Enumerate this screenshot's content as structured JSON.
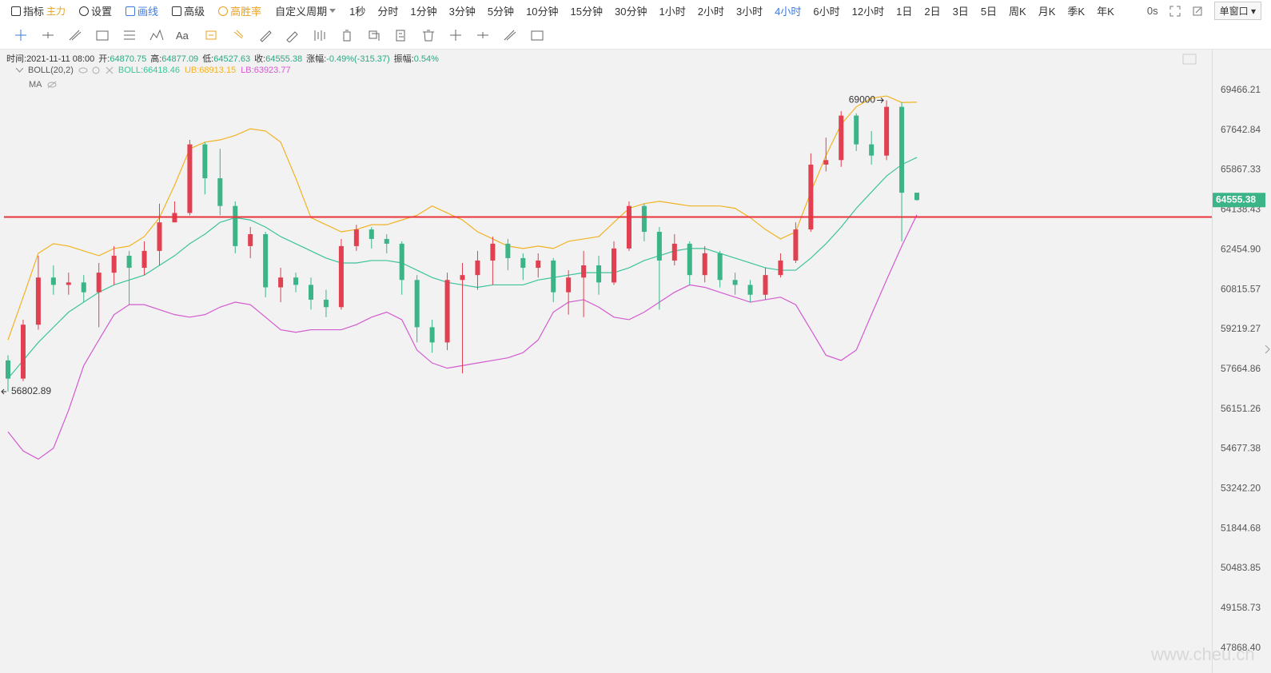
{
  "toolbar": {
    "left": [
      {
        "text": "指标",
        "tag": "主力"
      },
      {
        "text": "设置"
      },
      {
        "text": "画线"
      },
      {
        "text": "高级"
      },
      {
        "text": "高胜率"
      }
    ],
    "custom": "自定义周期",
    "periods": [
      "1秒",
      "分时",
      "1分钟",
      "3分钟",
      "5分钟",
      "10分钟",
      "15分钟",
      "30分钟",
      "1小时",
      "2小时",
      "3小时",
      "4小时",
      "6小时",
      "12小时",
      "1日",
      "2日",
      "3日",
      "5日",
      "周K",
      "月K",
      "季K",
      "年K"
    ],
    "active_period": 11,
    "timer": "0s",
    "window": "单窗口",
    "font_tool": "Aa"
  },
  "info": {
    "time_label": "时间:",
    "time": "2021-11-11 08:00",
    "open_label": "开:",
    "high_label": "高:",
    "low_label": "低:",
    "close_label": "收:",
    "change_label": "涨幅:",
    "change": "-0.49%(-315.37)",
    "amplitude_label": "振幅:",
    "amplitude": "0.54%",
    "indicator": "BOLL(20,2)",
    "ma": "MA"
  },
  "watermark": "www.cheu.cn",
  "chart_data": {
    "type": "candlestick",
    "log_scale": true,
    "grid": false,
    "up_color": "#e0404f",
    "down_color": "#3bb487",
    "ylim": [
      47100,
      71340
    ],
    "yticks": [
      69466.21,
      67642.84,
      65867.33,
      64138.43,
      {
        "value": 62454.9,
        "label": "62454.90"
      },
      60815.57,
      59219.27,
      57664.86,
      56151.26,
      54677.38,
      {
        "value": 53242.2,
        "label": "53242.20"
      },
      51844.68,
      50483.85,
      49158.73,
      {
        "value": 47868.4,
        "label": "47868.40"
      }
    ],
    "open": [
      58000,
      57300,
      59400,
      61300,
      61000,
      61100,
      60700,
      61500,
      62200,
      61700,
      62400,
      63600,
      64000,
      67000,
      65500,
      64300,
      62600,
      63100,
      60900,
      61300,
      61000,
      60400,
      60100,
      62600,
      63300,
      62900,
      62700,
      61200,
      59300,
      58700,
      61200,
      61400,
      62000,
      62700,
      62100,
      61700,
      62000,
      60700,
      61300,
      61800,
      61100,
      62500,
      64300,
      63200,
      62000,
      62700,
      61400,
      62300,
      61200,
      61000,
      60600,
      61400,
      62000,
      63300,
      66100,
      66300,
      68300,
      67000,
      66500,
      68700,
      64870.75
    ],
    "high": [
      58200,
      59600,
      62200,
      61800,
      61500,
      61400,
      61900,
      62600,
      62400,
      62800,
      64400,
      64500,
      67200,
      67100,
      66800,
      64500,
      63400,
      63200,
      61700,
      61500,
      61300,
      60800,
      62900,
      63500,
      63400,
      63100,
      62800,
      61400,
      59600,
      61500,
      61900,
      62400,
      63000,
      62900,
      62300,
      62300,
      62100,
      61600,
      62400,
      62200,
      62800,
      64500,
      64400,
      63400,
      63100,
      62800,
      62600,
      62400,
      61500,
      61200,
      61700,
      62300,
      63600,
      66600,
      67300,
      68500,
      68400,
      67600,
      69000,
      68900,
      64877.09
    ],
    "low": [
      56802.89,
      57200,
      59200,
      60600,
      60600,
      60300,
      59300,
      61000,
      60200,
      61400,
      61800,
      63600,
      63900,
      64800,
      63900,
      62300,
      62100,
      60500,
      60300,
      60700,
      60000,
      59700,
      60000,
      62400,
      62500,
      62300,
      60600,
      58700,
      58300,
      58400,
      57500,
      60800,
      61000,
      61600,
      61200,
      61300,
      60300,
      59800,
      59700,
      60600,
      61000,
      62400,
      62800,
      60000,
      61800,
      61000,
      61100,
      60900,
      60600,
      60300,
      60400,
      61300,
      61900,
      63200,
      65800,
      66000,
      66700,
      66100,
      66300,
      62800,
      64527.63
    ],
    "close": [
      57300,
      59400,
      61300,
      61000,
      61100,
      60700,
      61500,
      62200,
      61700,
      62400,
      63600,
      64000,
      67000,
      65500,
      64300,
      62600,
      63100,
      60900,
      61300,
      61000,
      60400,
      60100,
      62600,
      63300,
      62900,
      62700,
      61200,
      59300,
      58700,
      61200,
      61400,
      62000,
      62700,
      62100,
      61700,
      62000,
      60700,
      61300,
      61800,
      61100,
      62500,
      64300,
      63200,
      62000,
      62700,
      61400,
      62300,
      61200,
      61000,
      60600,
      61400,
      62000,
      63300,
      66100,
      66300,
      68300,
      67000,
      66500,
      68700,
      64870.75,
      64555.38
    ],
    "overlays": [
      {
        "name": "BOLL:",
        "color": "#3cc39b",
        "values": [
          57300,
          58000,
          58700,
          59300,
          59900,
          60300,
          60700,
          61000,
          61200,
          61400,
          61800,
          62200,
          62700,
          63100,
          63600,
          63800,
          63700,
          63400,
          63000,
          62700,
          62400,
          62100,
          61900,
          61900,
          62000,
          62000,
          61900,
          61600,
          61300,
          61100,
          61000,
          60900,
          61000,
          61000,
          61000,
          61200,
          61300,
          61400,
          61500,
          61500,
          61500,
          61700,
          62000,
          62200,
          62400,
          62500,
          62500,
          62300,
          62100,
          61900,
          61700,
          61600,
          61600,
          62100,
          62700,
          63400,
          64200,
          64900,
          65600,
          66100,
          66418.46
        ]
      },
      {
        "name": "UB:",
        "color": "#f2b322",
        "values": [
          58800,
          60500,
          62300,
          62700,
          62600,
          62400,
          62200,
          62500,
          62600,
          63000,
          63800,
          65200,
          66800,
          67100,
          67200,
          67400,
          67700,
          67600,
          67100,
          65500,
          63800,
          63500,
          63200,
          63300,
          63500,
          63500,
          63700,
          63900,
          64300,
          64000,
          63700,
          63200,
          62900,
          62600,
          62500,
          62600,
          62500,
          62800,
          62900,
          63000,
          63600,
          64200,
          64400,
          64500,
          64400,
          64300,
          64300,
          64300,
          64200,
          63800,
          63300,
          62900,
          63200,
          64900,
          66500,
          67900,
          68700,
          69100,
          69200,
          68900,
          68913.15
        ]
      },
      {
        "name": "LB:",
        "color": "#d35ad0",
        "values": [
          55300,
          54600,
          54300,
          54700,
          56100,
          57800,
          58800,
          59800,
          60200,
          60200,
          60000,
          59800,
          59700,
          59800,
          60100,
          60300,
          60200,
          59700,
          59200,
          59100,
          59200,
          59200,
          59200,
          59400,
          59700,
          59900,
          59600,
          58400,
          57900,
          57700,
          57800,
          57900,
          58000,
          58100,
          58300,
          58800,
          59900,
          60300,
          60400,
          60100,
          59700,
          59600,
          59900,
          60300,
          60700,
          61000,
          60900,
          60700,
          60500,
          60300,
          60400,
          60500,
          60200,
          59200,
          58200,
          58000,
          58400,
          59800,
          61200,
          62600,
          63923.77
        ]
      }
    ],
    "reference_line": {
      "value": 63830,
      "color": "#e8333a"
    }
  }
}
